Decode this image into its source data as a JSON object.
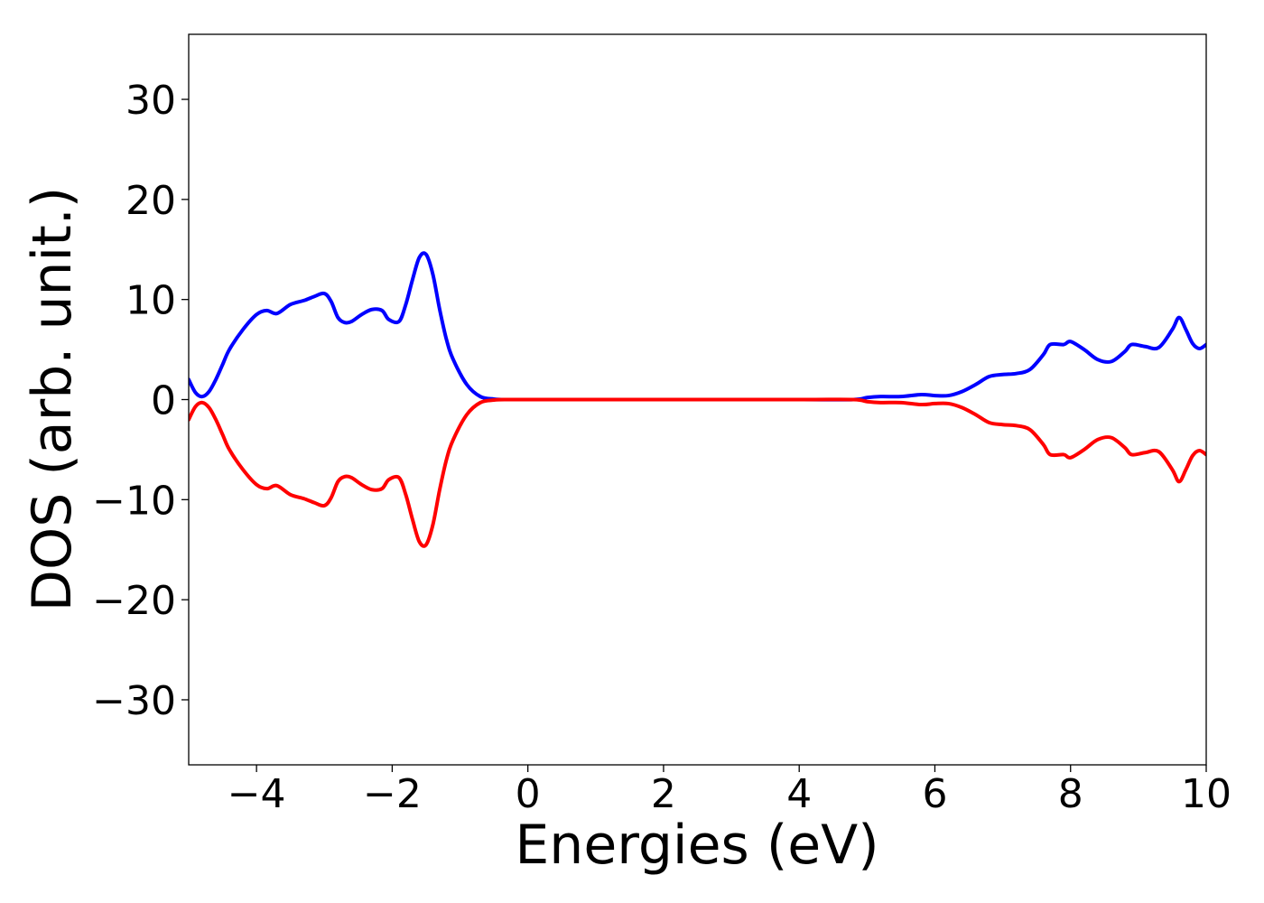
{
  "chart_data": {
    "type": "line",
    "title": "",
    "xlabel": "Energies (eV)",
    "ylabel": "DOS (arb. unit.)",
    "xlim": [
      -5,
      10
    ],
    "ylim": [
      -36.5,
      36.5
    ],
    "xticks": [
      -4,
      -2,
      0,
      2,
      4,
      6,
      8,
      10
    ],
    "xtick_labels": [
      "−4",
      "−2",
      "0",
      "2",
      "4",
      "6",
      "8",
      "10"
    ],
    "yticks": [
      30,
      20,
      10,
      0,
      -10,
      -20,
      -30
    ],
    "ytick_labels": [
      "30",
      "20",
      "10",
      "0",
      "−10",
      "−20",
      "−30"
    ],
    "grid": false,
    "legend": "none",
    "series": [
      {
        "color": "#0000ff",
        "x": [
          -5.0,
          -4.9,
          -4.8,
          -4.7,
          -4.6,
          -4.5,
          -4.4,
          -4.2,
          -4.0,
          -3.85,
          -3.7,
          -3.5,
          -3.3,
          -3.15,
          -3.0,
          -2.9,
          -2.8,
          -2.7,
          -2.6,
          -2.45,
          -2.3,
          -2.15,
          -2.05,
          -1.9,
          -1.8,
          -1.7,
          -1.6,
          -1.5,
          -1.4,
          -1.3,
          -1.2,
          -1.1,
          -0.9,
          -0.7,
          -0.5,
          -0.3,
          0.0,
          2.0,
          4.0,
          4.8,
          5.0,
          5.2,
          5.5,
          5.8,
          6.0,
          6.2,
          6.4,
          6.6,
          6.8,
          7.0,
          7.2,
          7.4,
          7.6,
          7.7,
          7.9,
          8.0,
          8.2,
          8.4,
          8.6,
          8.8,
          8.9,
          9.1,
          9.3,
          9.5,
          9.6,
          9.7,
          9.8,
          9.9,
          10.0
        ],
        "y": [
          2.0,
          0.7,
          0.3,
          0.8,
          2.0,
          3.5,
          5.0,
          7.0,
          8.5,
          8.9,
          8.6,
          9.5,
          9.9,
          10.3,
          10.6,
          9.8,
          8.2,
          7.7,
          7.8,
          8.5,
          9.0,
          8.9,
          8.0,
          7.8,
          9.5,
          12.0,
          14.2,
          14.5,
          12.5,
          9.0,
          6.0,
          4.0,
          1.5,
          0.3,
          0.05,
          0.0,
          0.0,
          0.0,
          0.0,
          0.0,
          0.2,
          0.3,
          0.3,
          0.5,
          0.4,
          0.4,
          0.8,
          1.5,
          2.3,
          2.5,
          2.6,
          3.0,
          4.5,
          5.5,
          5.5,
          5.8,
          5.0,
          4.0,
          3.8,
          4.8,
          5.5,
          5.3,
          5.2,
          7.0,
          8.2,
          7.0,
          5.6,
          5.1,
          5.5
        ],
        "ytick_dummy": null
      },
      {
        "color": "#ff0000",
        "x": [
          -5.0,
          -4.9,
          -4.8,
          -4.7,
          -4.6,
          -4.5,
          -4.4,
          -4.2,
          -4.0,
          -3.85,
          -3.7,
          -3.5,
          -3.3,
          -3.15,
          -3.0,
          -2.9,
          -2.8,
          -2.7,
          -2.6,
          -2.45,
          -2.3,
          -2.15,
          -2.05,
          -1.9,
          -1.8,
          -1.7,
          -1.6,
          -1.5,
          -1.4,
          -1.3,
          -1.2,
          -1.1,
          -0.9,
          -0.7,
          -0.5,
          -0.3,
          0.0,
          2.0,
          4.0,
          4.8,
          5.0,
          5.2,
          5.5,
          5.8,
          6.0,
          6.2,
          6.4,
          6.6,
          6.8,
          7.0,
          7.2,
          7.4,
          7.6,
          7.7,
          7.9,
          8.0,
          8.2,
          8.4,
          8.6,
          8.8,
          8.9,
          9.1,
          9.3,
          9.5,
          9.6,
          9.7,
          9.8,
          9.9,
          10.0
        ],
        "y": [
          -2.0,
          -0.7,
          -0.3,
          -0.8,
          -2.0,
          -3.5,
          -5.0,
          -7.0,
          -8.5,
          -8.9,
          -8.6,
          -9.5,
          -9.9,
          -10.3,
          -10.6,
          -9.8,
          -8.2,
          -7.7,
          -7.8,
          -8.5,
          -9.0,
          -8.9,
          -8.0,
          -7.8,
          -9.5,
          -12.0,
          -14.2,
          -14.5,
          -12.5,
          -9.0,
          -6.0,
          -4.0,
          -1.5,
          -0.3,
          -0.05,
          0.0,
          0.0,
          0.0,
          0.0,
          0.0,
          -0.2,
          -0.3,
          -0.3,
          -0.5,
          -0.4,
          -0.4,
          -0.8,
          -1.5,
          -2.3,
          -2.5,
          -2.6,
          -3.0,
          -4.5,
          -5.5,
          -5.5,
          -5.8,
          -5.0,
          -4.0,
          -3.8,
          -4.8,
          -5.5,
          -5.3,
          -5.2,
          -7.0,
          -8.2,
          -7.0,
          -5.6,
          -5.1,
          -5.5
        ]
      }
    ]
  }
}
